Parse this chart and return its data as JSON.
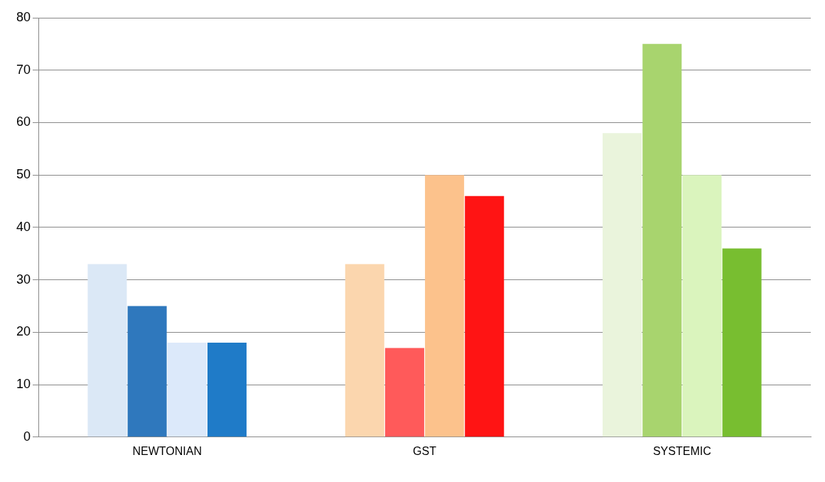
{
  "chart_data": {
    "type": "bar",
    "categories": [
      "NEWTONIAN",
      "GST",
      "SYSTEMIC"
    ],
    "series": [
      {
        "colors": [
          "#dbe8f6",
          "#fbd6ae",
          "#eaf4dc"
        ],
        "values": [
          33,
          33,
          58
        ]
      },
      {
        "colors": [
          "#2f78bd",
          "#ff5a5a",
          "#a8d46e"
        ],
        "values": [
          25,
          17,
          75
        ]
      },
      {
        "colors": [
          "#dce9fa",
          "#fcc28c",
          "#daf4bd"
        ],
        "values": [
          18,
          50,
          50
        ]
      },
      {
        "colors": [
          "#1f7bc8",
          "#ff1414",
          "#78be30"
        ],
        "values": [
          18,
          46,
          36
        ]
      }
    ],
    "ylim": [
      0,
      80
    ],
    "yticks": [
      0,
      10,
      20,
      30,
      40,
      50,
      60,
      70,
      80
    ],
    "grid": "y",
    "legend": false
  }
}
